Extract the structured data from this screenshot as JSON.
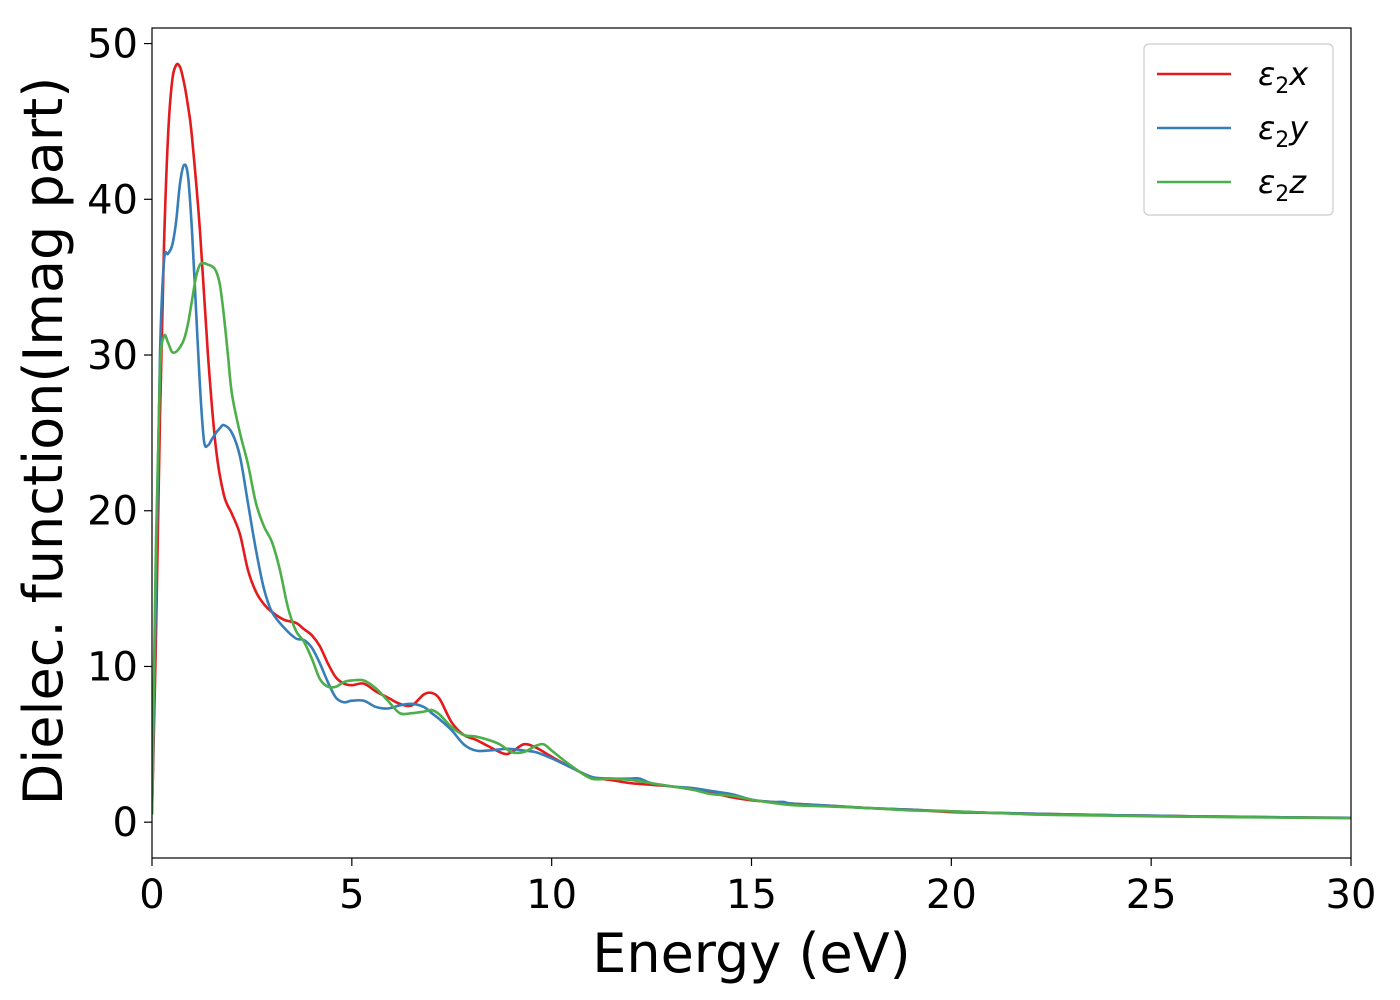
{
  "chart_data": {
    "type": "line",
    "title": "",
    "xlabel": "Energy (eV)",
    "ylabel": "Dielec. function(Imag part)",
    "xlim": [
      0,
      30
    ],
    "ylim": [
      -2.3,
      51
    ],
    "xticks": [
      0,
      5,
      10,
      15,
      20,
      25,
      30
    ],
    "yticks": [
      0,
      10,
      20,
      30,
      40,
      50
    ],
    "grid": false,
    "legend_position": "top-right",
    "series": [
      {
        "name": "ε₂x",
        "legend_base": "ε",
        "legend_sub": "2",
        "legend_axis": "x",
        "color": "#e41a1c",
        "x": [
          0,
          0.1,
          0.2,
          0.3,
          0.4,
          0.5,
          0.6,
          0.7,
          0.8,
          0.9,
          1.0,
          1.2,
          1.4,
          1.6,
          1.8,
          2.0,
          2.2,
          2.4,
          2.6,
          2.8,
          3.0,
          3.3,
          3.6,
          3.8,
          4.0,
          4.2,
          4.4,
          4.6,
          4.8,
          5.0,
          5.3,
          5.6,
          5.9,
          6.2,
          6.5,
          6.8,
          7.0,
          7.2,
          7.5,
          7.8,
          8.1,
          8.4,
          8.8,
          9.0,
          9.3,
          9.6,
          10.0,
          10.5,
          11.0,
          11.5,
          12.0,
          12.5,
          13.0,
          13.5,
          14.0,
          14.5,
          15.0,
          15.5,
          16.0,
          17.0,
          18.0,
          19.0,
          20.0,
          21.0,
          22.0,
          23.0,
          24.0,
          25.0,
          26.0,
          27.0,
          28.0,
          29.0,
          30.0
        ],
        "y": [
          0.5,
          12,
          26,
          37,
          44,
          47.5,
          48.6,
          48.5,
          47.5,
          46,
          44,
          38,
          30,
          24,
          21,
          19.8,
          18.5,
          16.2,
          14.8,
          14,
          13.5,
          13,
          12.8,
          12.4,
          12,
          11.3,
          10.2,
          9.3,
          8.9,
          8.8,
          8.9,
          8.4,
          8.0,
          7.6,
          7.5,
          8.2,
          8.3,
          7.9,
          6.4,
          5.6,
          5.3,
          4.9,
          4.4,
          4.5,
          5.0,
          4.8,
          4.2,
          3.5,
          2.9,
          2.7,
          2.5,
          2.4,
          2.3,
          2.1,
          1.9,
          1.6,
          1.4,
          1.3,
          1.2,
          1.05,
          0.9,
          0.8,
          0.65,
          0.6,
          0.55,
          0.5,
          0.45,
          0.42,
          0.38,
          0.35,
          0.32,
          0.3,
          0.28
        ]
      },
      {
        "name": "ε₂y",
        "legend_base": "ε",
        "legend_sub": "2",
        "legend_axis": "y",
        "color": "#377eb8",
        "x": [
          0,
          0.1,
          0.2,
          0.3,
          0.4,
          0.5,
          0.6,
          0.7,
          0.8,
          0.9,
          1.0,
          1.1,
          1.2,
          1.3,
          1.4,
          1.5,
          1.6,
          1.7,
          1.8,
          2.0,
          2.2,
          2.4,
          2.6,
          2.8,
          3.0,
          3.3,
          3.6,
          3.8,
          4.0,
          4.2,
          4.4,
          4.6,
          4.8,
          5.0,
          5.3,
          5.6,
          5.9,
          6.2,
          6.5,
          6.8,
          7.0,
          7.2,
          7.5,
          7.8,
          8.1,
          8.4,
          8.8,
          9.0,
          9.3,
          9.6,
          10.0,
          10.5,
          11.0,
          11.5,
          12.0,
          12.2,
          12.5,
          13.0,
          13.5,
          14.0,
          14.5,
          15.0,
          15.5,
          15.8,
          16.0,
          17.0,
          18.0,
          19.0,
          20.0,
          21.0,
          22.0,
          23.0,
          24.0,
          25.0,
          26.0,
          27.0,
          28.0,
          29.0,
          30.0
        ],
        "y": [
          0.5,
          15,
          30,
          36,
          36.5,
          37,
          38.5,
          41,
          42.2,
          41.5,
          38,
          33,
          28,
          24.5,
          24.2,
          24.6,
          25,
          25.3,
          25.5,
          25,
          23.5,
          20.5,
          17.5,
          15,
          13.5,
          12.5,
          11.8,
          11.7,
          11.2,
          10.2,
          9.0,
          8.0,
          7.7,
          7.8,
          7.8,
          7.4,
          7.3,
          7.5,
          7.6,
          7.4,
          7.0,
          6.6,
          5.9,
          5.0,
          4.6,
          4.6,
          4.7,
          4.7,
          4.6,
          4.5,
          4.1,
          3.5,
          2.9,
          2.8,
          2.8,
          2.8,
          2.5,
          2.3,
          2.2,
          2.0,
          1.8,
          1.45,
          1.3,
          1.3,
          1.2,
          1.05,
          0.9,
          0.8,
          0.7,
          0.6,
          0.55,
          0.5,
          0.45,
          0.42,
          0.38,
          0.35,
          0.32,
          0.3,
          0.28
        ]
      },
      {
        "name": "ε₂z",
        "legend_base": "ε",
        "legend_sub": "2",
        "legend_axis": "z",
        "color": "#4daf4a",
        "x": [
          0,
          0.1,
          0.2,
          0.3,
          0.4,
          0.5,
          0.6,
          0.7,
          0.8,
          0.9,
          1.0,
          1.1,
          1.2,
          1.3,
          1.4,
          1.5,
          1.6,
          1.7,
          1.8,
          1.9,
          2.0,
          2.2,
          2.4,
          2.6,
          2.8,
          3.0,
          3.2,
          3.4,
          3.6,
          3.8,
          4.0,
          4.2,
          4.4,
          4.6,
          4.8,
          5.0,
          5.3,
          5.6,
          5.9,
          6.2,
          6.5,
          6.8,
          7.0,
          7.2,
          7.5,
          7.8,
          8.1,
          8.4,
          8.7,
          9.0,
          9.3,
          9.6,
          9.8,
          10.0,
          10.5,
          11.0,
          11.5,
          12.0,
          12.5,
          13.0,
          13.5,
          14.0,
          14.5,
          15.0,
          15.5,
          16.0,
          17.0,
          18.0,
          19.0,
          20.0,
          21.0,
          22.0,
          23.0,
          24.0,
          25.0,
          26.0,
          27.0,
          28.0,
          29.0,
          30.0
        ],
        "y": [
          0.5,
          18,
          29,
          31.2,
          30.8,
          30.2,
          30.2,
          30.5,
          31,
          32,
          33.5,
          35,
          35.8,
          35.9,
          35.8,
          35.7,
          35.4,
          34.5,
          32.5,
          30,
          27.5,
          25,
          23,
          20.5,
          19,
          18,
          16.2,
          13.8,
          12.3,
          11.6,
          10.5,
          9.2,
          8.7,
          8.7,
          9.0,
          9.1,
          9.1,
          8.6,
          7.8,
          7.0,
          7.0,
          7.1,
          7.2,
          6.9,
          6.1,
          5.6,
          5.5,
          5.3,
          5.0,
          4.5,
          4.5,
          4.9,
          5.0,
          4.6,
          3.6,
          2.8,
          2.8,
          2.7,
          2.5,
          2.3,
          2.1,
          1.8,
          1.7,
          1.45,
          1.25,
          1.1,
          1.0,
          0.9,
          0.75,
          0.7,
          0.6,
          0.5,
          0.45,
          0.42,
          0.38,
          0.35,
          0.32,
          0.3,
          0.28,
          0.26
        ]
      }
    ]
  }
}
